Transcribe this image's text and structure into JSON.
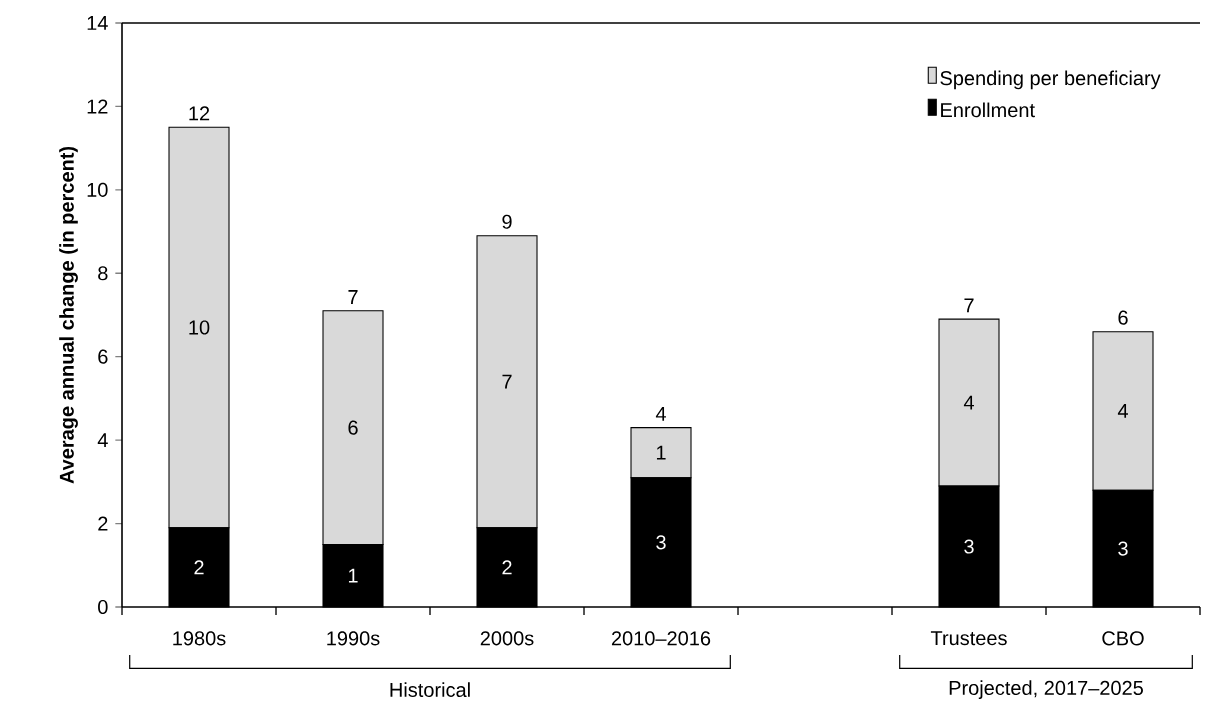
{
  "chart_data": {
    "type": "bar",
    "stacked": true,
    "ylabel": "Average annual change (in percent)",
    "categories": [
      "1980s",
      "1990s",
      "2000s",
      "2010–2016",
      null,
      "Trustees",
      "CBO"
    ],
    "series": [
      {
        "name": "Enrollment",
        "color": "#000000",
        "values": [
          1.9,
          1.5,
          1.9,
          3.1,
          null,
          2.9,
          2.8
        ],
        "value_labels": [
          "2",
          "1",
          "2",
          "3",
          null,
          "3",
          "3"
        ]
      },
      {
        "name": "Spending per beneficiary",
        "color": "#d9d9d9",
        "values": [
          9.6,
          5.6,
          7.0,
          1.2,
          null,
          4.0,
          3.8
        ],
        "value_labels": [
          "10",
          "6",
          "7",
          "1",
          null,
          "4",
          "4"
        ]
      }
    ],
    "totals": [
      "12",
      "7",
      "9",
      "4",
      null,
      "7",
      "6"
    ],
    "ylim": [
      0,
      14
    ],
    "yticks": [
      0,
      2,
      4,
      6,
      8,
      10,
      12,
      14
    ],
    "legend": "top right",
    "annotations": [
      "Historical",
      "Projected, 2017–2025"
    ]
  }
}
